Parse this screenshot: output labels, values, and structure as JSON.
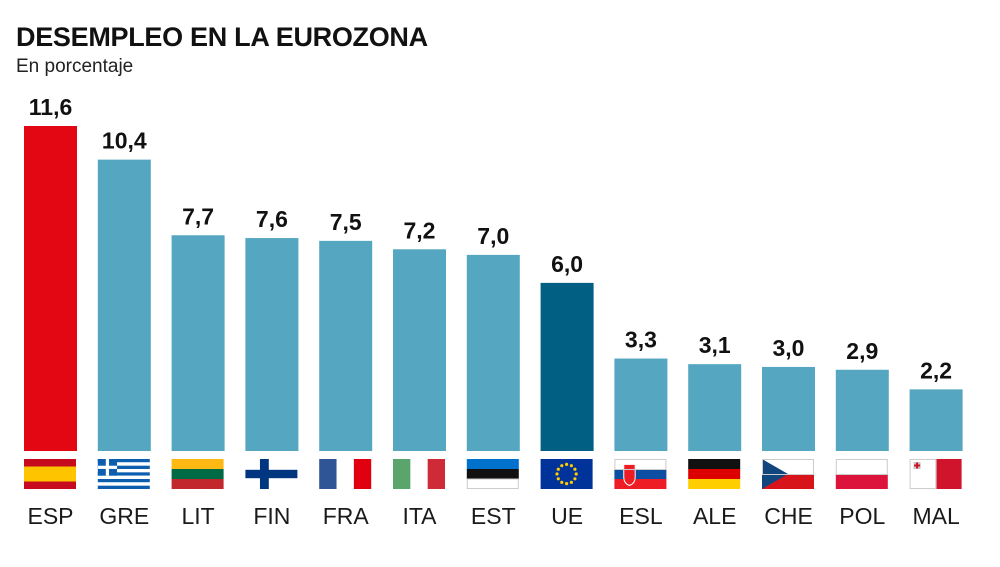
{
  "chart_data": {
    "type": "bar",
    "title": "DESEMPLEO EN LA EUROZONA",
    "subtitle": "En porcentaje",
    "categories": [
      "ESP",
      "GRE",
      "LIT",
      "FIN",
      "FRA",
      "ITA",
      "EST",
      "UE",
      "ESL",
      "ALE",
      "CHE",
      "POL",
      "MAL"
    ],
    "values": [
      11.6,
      10.4,
      7.7,
      7.6,
      7.5,
      7.2,
      7.0,
      6.0,
      3.3,
      3.1,
      3.0,
      2.9,
      2.2
    ],
    "value_labels": [
      "11,6",
      "10,4",
      "7,7",
      "7,6",
      "7,5",
      "7,2",
      "7,0",
      "6,0",
      "3,3",
      "3,1",
      "3,0",
      "2,9",
      "2,2"
    ],
    "flags": [
      "spain-flag",
      "greece-flag",
      "lithuania-flag",
      "finland-flag",
      "france-flag",
      "italy-flag",
      "estonia-flag",
      "eu-flag",
      "slovakia-flag",
      "germany-flag",
      "czechia-flag",
      "poland-flag",
      "malta-flag"
    ],
    "bar_colors": [
      "#e30613",
      "#55a7c1",
      "#55a7c1",
      "#55a7c1",
      "#55a7c1",
      "#55a7c1",
      "#55a7c1",
      "#005f82",
      "#55a7c1",
      "#55a7c1",
      "#55a7c1",
      "#55a7c1",
      "#55a7c1"
    ],
    "xlabel": "",
    "ylabel": "",
    "ylim": [
      0,
      11.6
    ],
    "grid": false,
    "legend": "none"
  }
}
